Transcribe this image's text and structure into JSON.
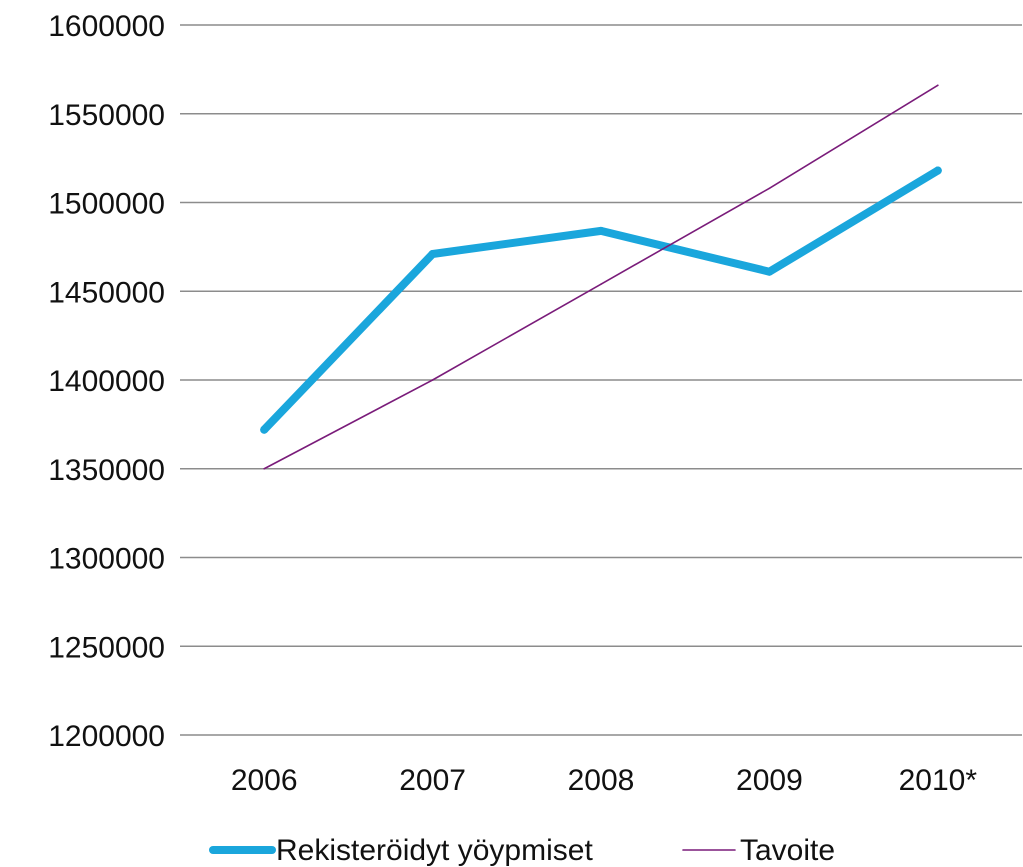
{
  "chart_data": {
    "type": "line",
    "title": "",
    "xlabel": "",
    "ylabel": "",
    "categories": [
      "2006",
      "2007",
      "2008",
      "2009",
      "2010*"
    ],
    "ylim": [
      1200000,
      1600000
    ],
    "yticks": [
      1200000,
      1250000,
      1300000,
      1350000,
      1400000,
      1450000,
      1500000,
      1550000,
      1600000
    ],
    "grid": true,
    "legend_position": "bottom",
    "series": [
      {
        "name": "Rekisteröidyt yöypmiset",
        "values": [
          1372000,
          1471000,
          1484000,
          1461000,
          1518000
        ],
        "color": "#1aa6dc",
        "style": "thick"
      },
      {
        "name": "Tavoite",
        "values": [
          1350000,
          1400000,
          1454000,
          1508000,
          1566000
        ],
        "color": "#7a1c7a",
        "style": "thin"
      }
    ]
  }
}
